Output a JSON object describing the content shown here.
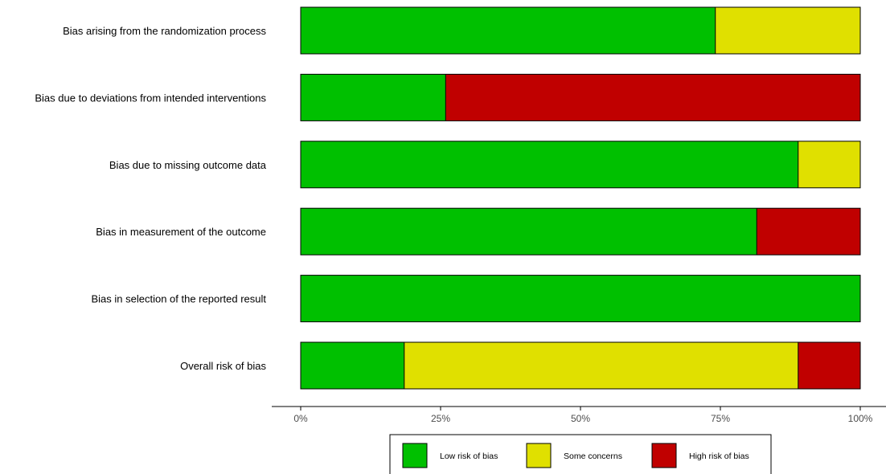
{
  "chart_data": {
    "type": "bar",
    "orientation": "horizontal",
    "stacked": true,
    "title": "",
    "xlabel": "",
    "ylabel": "",
    "xlim": [
      0,
      100
    ],
    "x_unit": "%",
    "grid": false,
    "legend_position": "bottom",
    "categories": [
      "Bias arising from the randomization process",
      "Bias due to deviations from intended interventions",
      "Bias due to missing outcome data",
      "Bias in measurement of the outcome",
      "Bias in selection of the reported result",
      "Overall risk of bias"
    ],
    "series": [
      {
        "name": "Low risk of bias",
        "color": "#00c000",
        "values": [
          74.1,
          25.9,
          88.9,
          81.5,
          100,
          18.5
        ]
      },
      {
        "name": "Some concerns",
        "color": "#e0e000",
        "values": [
          25.9,
          0,
          11.1,
          0,
          0,
          70.4
        ]
      },
      {
        "name": "High risk of bias",
        "color": "#c00000",
        "values": [
          0,
          74.1,
          0,
          18.5,
          0,
          11.1
        ]
      }
    ],
    "ticks": [
      "0%",
      "25%",
      "50%",
      "75%",
      "100%"
    ],
    "tick_values": [
      0,
      25,
      50,
      75,
      100
    ]
  }
}
